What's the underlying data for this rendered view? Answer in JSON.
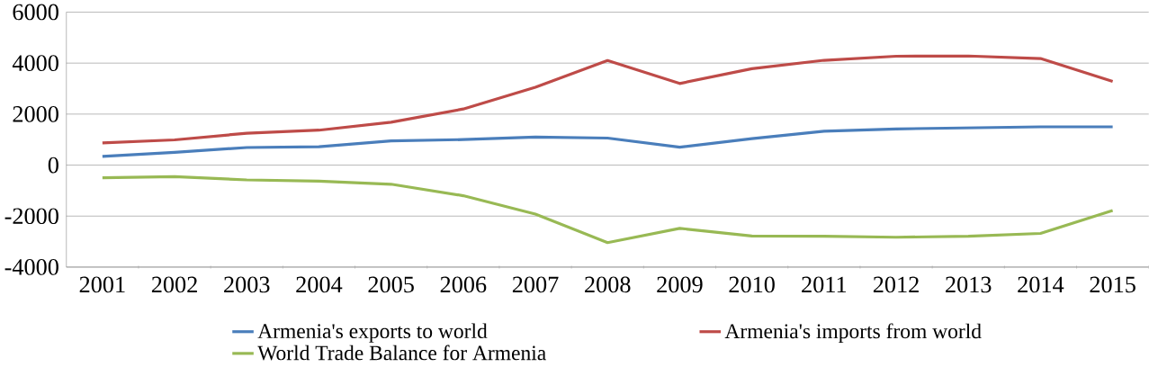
{
  "chart_data": {
    "type": "line",
    "categories": [
      "2001",
      "2002",
      "2003",
      "2004",
      "2005",
      "2006",
      "2007",
      "2008",
      "2009",
      "2010",
      "2011",
      "2012",
      "2013",
      "2014",
      "2015"
    ],
    "series": [
      {
        "name": "Armenia's exports to world",
        "color": "#4a7ebb",
        "values": [
          340,
          500,
          690,
          720,
          950,
          1000,
          1100,
          1060,
          700,
          1040,
          1330,
          1420,
          1460,
          1500,
          1500
        ]
      },
      {
        "name": "Armenia's imports from world",
        "color": "#be4b48",
        "values": [
          870,
          990,
          1250,
          1370,
          1680,
          2200,
          3050,
          4100,
          3200,
          3780,
          4110,
          4270,
          4280,
          4180,
          3280
        ]
      },
      {
        "name": "World Trade Balance for Armenia",
        "color": "#98b954",
        "values": [
          -500,
          -450,
          -580,
          -630,
          -750,
          -1200,
          -1920,
          -3040,
          -2480,
          -2780,
          -2790,
          -2830,
          -2790,
          -2680,
          -1780
        ]
      }
    ],
    "ylim": [
      -4000,
      6000
    ],
    "yticks": [
      -4000,
      -2000,
      0,
      2000,
      4000,
      6000
    ],
    "grid": "y",
    "legend": "bottom",
    "marker": "none",
    "line_style": "solid"
  }
}
